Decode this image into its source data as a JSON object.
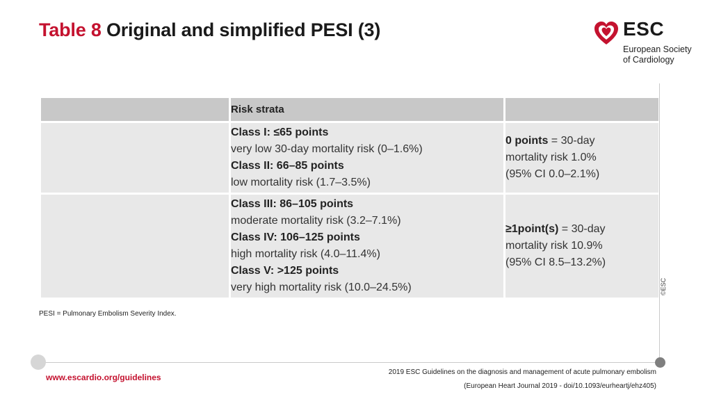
{
  "slide": {
    "title_number": "Table 8",
    "title_text": "Original and simplified PESI (3)"
  },
  "logo": {
    "abbr": "ESC",
    "line1": "European Society",
    "line2": "of Cardiology",
    "accent_color": "#c4122f",
    "icon": "heart-logo-icon"
  },
  "table": {
    "header": [
      "",
      "Risk strata",
      ""
    ],
    "rows": [
      {
        "label": "",
        "classes": [
          {
            "name": "Class I: ≤65 points",
            "desc": "very low 30-day mortality  risk (0–1.6%)"
          },
          {
            "name": "Class II: 66–85 points",
            "desc": "low mortality  risk (1.7–3.5%)"
          }
        ],
        "points_bold": "0 points",
        "points_line1": " = 30-day",
        "points_line2": "mortality  risk 1.0%",
        "points_line3": "(95% CI 0.0–2.1%)"
      },
      {
        "label": "",
        "classes": [
          {
            "name": "Class III: 86–105 points",
            "desc": "moderate mortality  risk (3.2–7.1%)"
          },
          {
            "name": "Class IV: 106–125 points",
            "desc": "high mortality  risk (4.0–11.4%)"
          },
          {
            "name": "Class V: >125 points",
            "desc": "very high mortality  risk (10.0–24.5%)"
          }
        ],
        "points_bold": "≥1point(s)",
        "points_line1": " = 30-day",
        "points_line2": "mortality  risk 10.9%",
        "points_line3": "(95% CI 8.5–13.2%)"
      }
    ]
  },
  "footnote": "PESI = Pulmonary Embolism Severity Index.",
  "footer": {
    "url": "www.escardio.org/guidelines",
    "citation_line1": "2019 ESC Guidelines on the diagnosis and management of acute pulmonary embolism",
    "citation_line2": "(European Heart Journal 2019 - doi/10.1093/eurheartj/ehz405)",
    "copyright": "©ESC"
  }
}
